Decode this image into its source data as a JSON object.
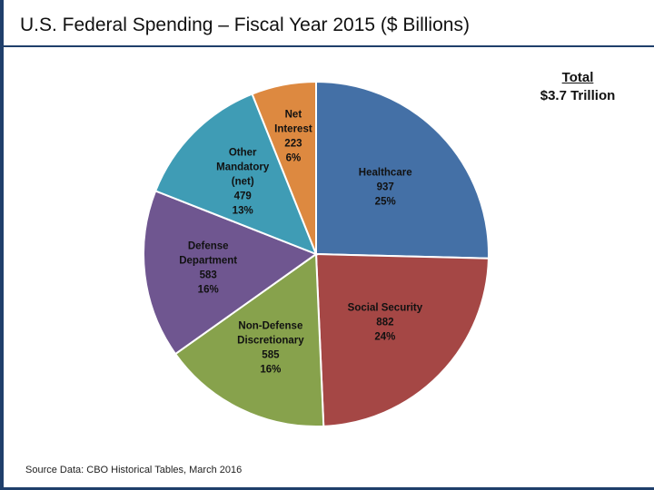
{
  "page": {
    "title": "U.S. Federal Spending – Fiscal Year 2015 ($ Billions)",
    "total_label": "Total",
    "total_value": "$3.7 Trillion",
    "source": "Source Data: CBO Historical Tables, March 2016"
  },
  "chart_data": {
    "type": "pie",
    "title": "U.S. Federal Spending – Fiscal Year 2015 ($ Billions)",
    "units": "$ Billions",
    "total": "$3.7 Trillion",
    "slices": [
      {
        "name": "Healthcare",
        "label_lines": [
          "Healthcare"
        ],
        "value": 937,
        "percent": "25%",
        "color": "#4470a6"
      },
      {
        "name": "Social Security",
        "label_lines": [
          "Social Security"
        ],
        "value": 882,
        "percent": "24%",
        "color": "#a54745"
      },
      {
        "name": "Non-Defense Discretionary",
        "label_lines": [
          "Non-Defense",
          "Discretionary"
        ],
        "value": 585,
        "percent": "16%",
        "color": "#87a24c"
      },
      {
        "name": "Defense Department",
        "label_lines": [
          "Defense",
          "Department"
        ],
        "value": 583,
        "percent": "16%",
        "color": "#6f5690"
      },
      {
        "name": "Other Mandatory (net)",
        "label_lines": [
          "Other",
          "Mandatory",
          "(net)"
        ],
        "value": 479,
        "percent": "13%",
        "color": "#3f9cb5"
      },
      {
        "name": "Net Interest",
        "label_lines": [
          "Net",
          "Interest"
        ],
        "value": 223,
        "percent": "6%",
        "color": "#dd8940"
      }
    ]
  }
}
